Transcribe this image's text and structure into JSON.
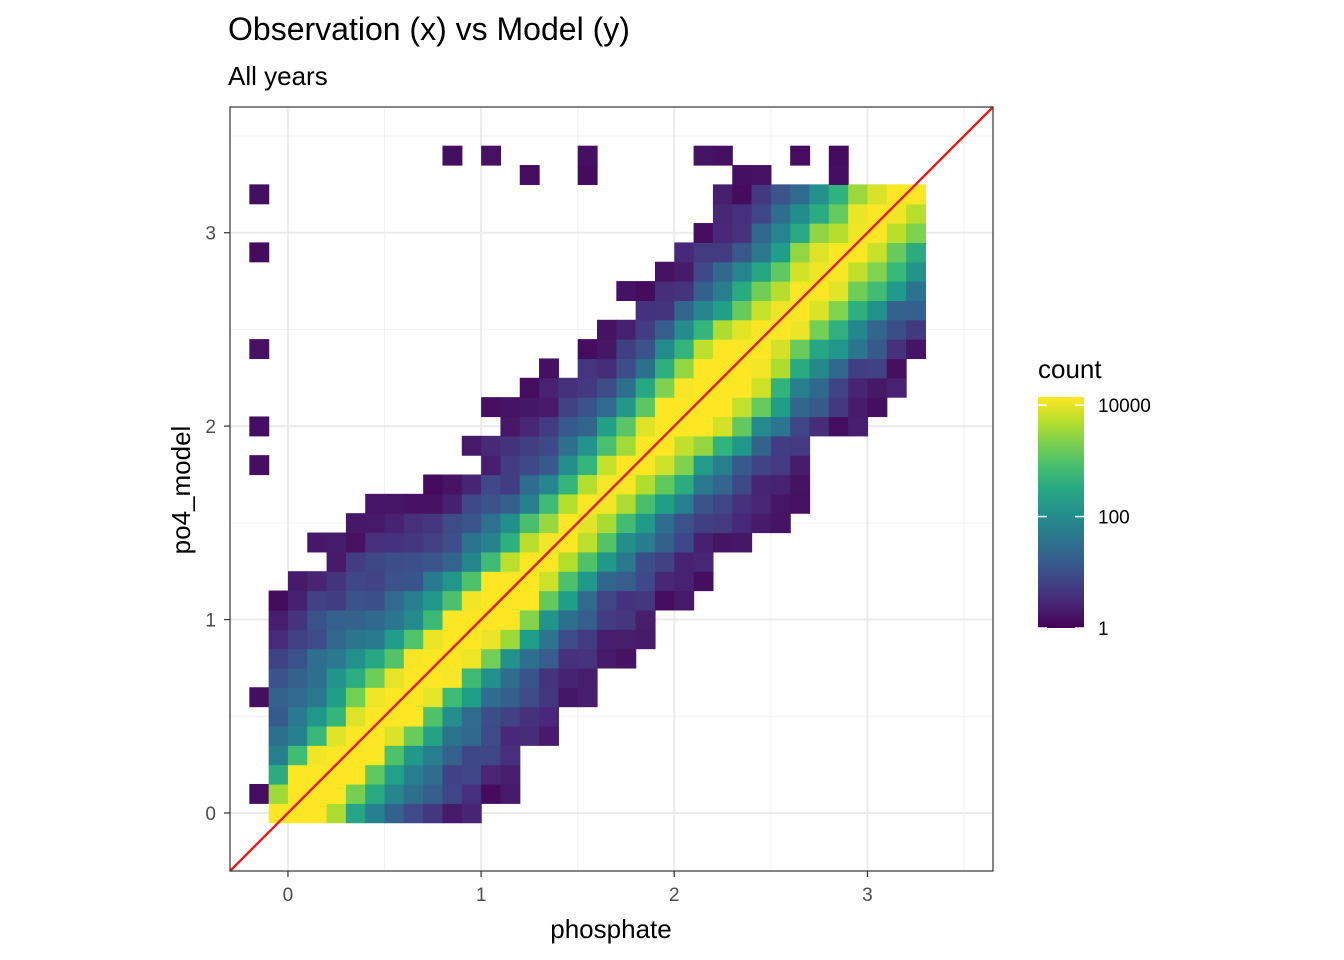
{
  "chart_data": {
    "type": "heatmap",
    "title": "Observation (x) vs Model (y)",
    "subtitle": "All years",
    "xlabel": "phosphate",
    "ylabel": "po4_model",
    "xlim": [
      -0.3,
      3.65
    ],
    "ylim": [
      -0.3,
      3.65
    ],
    "x_ticks": [
      "0",
      "1",
      "2",
      "3"
    ],
    "y_ticks": [
      "0",
      "1",
      "2",
      "3"
    ],
    "grid": true,
    "reference_line": {
      "slope": 1,
      "intercept": 0,
      "color": "#e41a1c"
    },
    "bins": {
      "count": 35,
      "x_min": -0.2,
      "y_min": -0.05,
      "width": 0.1
    },
    "color_scale": {
      "palette": "viridis",
      "log10": true,
      "min": 1,
      "max": 14000
    },
    "legend": {
      "title": "count",
      "ticks": [
        "10000",
        "100",
        "1"
      ],
      "tick_values": [
        10000,
        100,
        1
      ],
      "position": "right"
    }
  }
}
